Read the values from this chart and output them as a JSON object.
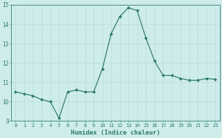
{
  "x": [
    0,
    1,
    2,
    3,
    4,
    5,
    6,
    7,
    8,
    9,
    10,
    11,
    12,
    13,
    14,
    15,
    16,
    17,
    18,
    19,
    20,
    21,
    22,
    23
  ],
  "y": [
    10.5,
    10.4,
    10.3,
    10.1,
    10.0,
    9.15,
    10.5,
    10.6,
    10.5,
    10.5,
    11.7,
    13.5,
    14.4,
    14.85,
    14.7,
    13.3,
    12.1,
    11.35,
    11.35,
    11.2,
    11.1,
    11.1,
    11.2,
    11.15
  ],
  "line_color": "#2d7a6e",
  "marker": "D",
  "marker_size": 2.0,
  "bg_color": "#cdecea",
  "grid_color": "#b8dbd8",
  "xlabel": "Humidex (Indice chaleur)",
  "ylim": [
    9,
    15
  ],
  "xlim": [
    -0.5,
    23.5
  ],
  "yticks": [
    9,
    10,
    11,
    12,
    13,
    14,
    15
  ],
  "xticks": [
    0,
    1,
    2,
    3,
    4,
    5,
    6,
    7,
    8,
    9,
    10,
    11,
    12,
    13,
    14,
    15,
    16,
    17,
    18,
    19,
    20,
    21,
    22,
    23
  ],
  "tick_color": "#2d7a6e",
  "label_color": "#2d7a6e",
  "tick_fontsize": 5.0,
  "xlabel_fontsize": 6.5,
  "linewidth": 0.9
}
